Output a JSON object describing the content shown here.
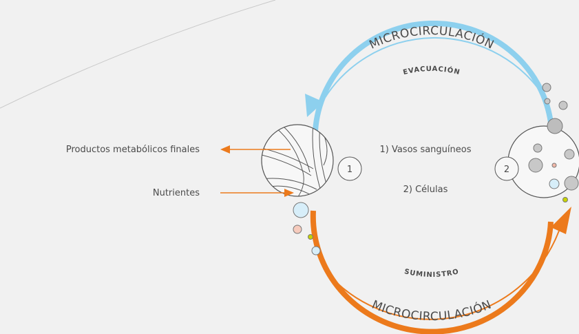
{
  "diagram": {
    "top_label": "MICROCIRCULACIÓN",
    "top_inner_label": "EVACUACIÓN",
    "bottom_inner_label": "SUMINISTRO",
    "bottom_label": "MICROCIRCULACIÓN",
    "left_labels": [
      "Productos metabólicos finales",
      "Nutrientes"
    ],
    "legend": [
      "1) Vasos sanguíneos",
      "2) Células"
    ],
    "nodes": [
      {
        "label": "1"
      },
      {
        "label": "2"
      }
    ]
  }
}
